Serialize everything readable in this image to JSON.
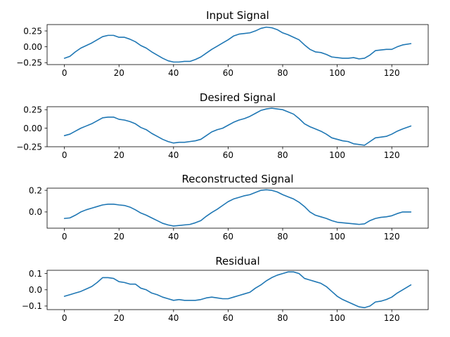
{
  "chart_data": [
    {
      "type": "line",
      "title": "Input Signal",
      "xlim": [
        -6.35,
        133.35
      ],
      "ylim": [
        -0.28,
        0.35
      ],
      "xticks": [
        0,
        20,
        40,
        60,
        80,
        100,
        120
      ],
      "yticks": [
        -0.25,
        0.0,
        0.25
      ],
      "ytick_labels": [
        "−0.25",
        "0.00",
        "0.25"
      ],
      "grid": false,
      "color": "#1f77b4",
      "x": [
        0,
        2,
        4,
        6,
        8,
        10,
        12,
        14,
        16,
        18,
        20,
        22,
        24,
        26,
        28,
        30,
        32,
        34,
        36,
        38,
        40,
        42,
        44,
        46,
        48,
        50,
        52,
        54,
        56,
        58,
        60,
        62,
        64,
        66,
        68,
        70,
        72,
        74,
        76,
        78,
        80,
        82,
        84,
        86,
        88,
        90,
        92,
        94,
        96,
        98,
        100,
        102,
        104,
        106,
        108,
        110,
        112,
        114,
        116,
        118,
        120,
        122,
        124,
        127
      ],
      "y": [
        -0.18,
        -0.15,
        -0.08,
        -0.02,
        0.02,
        0.06,
        0.11,
        0.16,
        0.18,
        0.18,
        0.15,
        0.15,
        0.12,
        0.08,
        0.02,
        -0.02,
        -0.08,
        -0.13,
        -0.18,
        -0.22,
        -0.24,
        -0.24,
        -0.23,
        -0.23,
        -0.2,
        -0.16,
        -0.1,
        -0.04,
        0.01,
        0.06,
        0.11,
        0.17,
        0.2,
        0.21,
        0.22,
        0.25,
        0.29,
        0.31,
        0.3,
        0.27,
        0.22,
        0.19,
        0.15,
        0.11,
        0.03,
        -0.04,
        -0.08,
        -0.09,
        -0.12,
        -0.16,
        -0.17,
        -0.18,
        -0.18,
        -0.17,
        -0.19,
        -0.18,
        -0.13,
        -0.06,
        -0.05,
        -0.04,
        -0.04,
        0.0,
        0.03,
        0.05
      ]
    },
    {
      "type": "line",
      "title": "Desired Signal",
      "xlim": [
        -6.35,
        133.35
      ],
      "ylim": [
        -0.25,
        0.29
      ],
      "xticks": [
        0,
        20,
        40,
        60,
        80,
        100,
        120
      ],
      "yticks": [
        -0.25,
        0.0,
        0.25
      ],
      "ytick_labels": [
        "−0.25",
        "0.00",
        "0.25"
      ],
      "grid": false,
      "color": "#1f77b4",
      "x": [
        0,
        2,
        4,
        6,
        8,
        10,
        12,
        14,
        16,
        18,
        20,
        22,
        24,
        26,
        28,
        30,
        32,
        34,
        36,
        38,
        40,
        42,
        44,
        46,
        48,
        50,
        52,
        54,
        56,
        58,
        60,
        62,
        64,
        66,
        68,
        70,
        72,
        74,
        76,
        78,
        80,
        82,
        84,
        86,
        88,
        90,
        92,
        94,
        96,
        98,
        100,
        102,
        104,
        106,
        108,
        110,
        112,
        114,
        116,
        118,
        120,
        122,
        124,
        127
      ],
      "y": [
        -0.1,
        -0.08,
        -0.04,
        0.0,
        0.03,
        0.06,
        0.1,
        0.14,
        0.15,
        0.15,
        0.12,
        0.11,
        0.09,
        0.06,
        0.01,
        -0.02,
        -0.07,
        -0.11,
        -0.15,
        -0.18,
        -0.2,
        -0.19,
        -0.19,
        -0.18,
        -0.17,
        -0.15,
        -0.1,
        -0.05,
        -0.02,
        0.0,
        0.04,
        0.08,
        0.11,
        0.13,
        0.16,
        0.2,
        0.24,
        0.26,
        0.27,
        0.26,
        0.25,
        0.22,
        0.19,
        0.13,
        0.06,
        0.02,
        -0.01,
        -0.04,
        -0.08,
        -0.13,
        -0.15,
        -0.17,
        -0.18,
        -0.21,
        -0.22,
        -0.23,
        -0.18,
        -0.13,
        -0.12,
        -0.11,
        -0.08,
        -0.04,
        -0.01,
        0.03
      ]
    },
    {
      "type": "line",
      "title": "Reconstructed Signal",
      "xlim": [
        -6.35,
        133.35
      ],
      "ylim": [
        -0.15,
        0.22
      ],
      "xticks": [
        0,
        20,
        40,
        60,
        80,
        100,
        120
      ],
      "yticks": [
        0.0,
        0.2
      ],
      "ytick_labels": [
        "0.0",
        "0.2"
      ],
      "grid": false,
      "color": "#1f77b4",
      "x": [
        0,
        2,
        4,
        6,
        8,
        10,
        12,
        14,
        16,
        18,
        20,
        22,
        24,
        26,
        28,
        30,
        32,
        34,
        36,
        38,
        40,
        42,
        44,
        46,
        48,
        50,
        52,
        54,
        56,
        58,
        60,
        62,
        64,
        66,
        68,
        70,
        72,
        74,
        76,
        78,
        80,
        82,
        84,
        86,
        88,
        90,
        92,
        94,
        96,
        98,
        100,
        102,
        104,
        106,
        108,
        110,
        112,
        114,
        116,
        118,
        120,
        122,
        124,
        127
      ],
      "y": [
        -0.06,
        -0.055,
        -0.03,
        0.0,
        0.02,
        0.035,
        0.05,
        0.065,
        0.072,
        0.072,
        0.065,
        0.06,
        0.045,
        0.02,
        -0.01,
        -0.03,
        -0.055,
        -0.08,
        -0.105,
        -0.12,
        -0.13,
        -0.125,
        -0.12,
        -0.115,
        -0.1,
        -0.08,
        -0.04,
        -0.005,
        0.025,
        0.06,
        0.095,
        0.12,
        0.135,
        0.15,
        0.16,
        0.18,
        0.2,
        0.205,
        0.2,
        0.185,
        0.16,
        0.14,
        0.12,
        0.09,
        0.05,
        0.0,
        -0.03,
        -0.045,
        -0.06,
        -0.08,
        -0.095,
        -0.1,
        -0.105,
        -0.11,
        -0.115,
        -0.11,
        -0.08,
        -0.06,
        -0.05,
        -0.045,
        -0.035,
        -0.015,
        0.0,
        0.0
      ]
    },
    {
      "type": "line",
      "title": "Residual",
      "xlim": [
        -6.35,
        133.35
      ],
      "ylim": [
        -0.122,
        0.12
      ],
      "xticks": [
        0,
        20,
        40,
        60,
        80,
        100,
        120
      ],
      "yticks": [
        -0.1,
        0.0,
        0.1
      ],
      "ytick_labels": [
        "−0.1",
        "0.0",
        "0.1"
      ],
      "grid": false,
      "color": "#1f77b4",
      "x": [
        0,
        2,
        4,
        6,
        8,
        10,
        12,
        14,
        16,
        18,
        20,
        22,
        24,
        26,
        28,
        30,
        32,
        34,
        36,
        38,
        40,
        42,
        44,
        46,
        48,
        50,
        52,
        54,
        56,
        58,
        60,
        62,
        64,
        66,
        68,
        70,
        72,
        74,
        76,
        78,
        80,
        82,
        84,
        86,
        88,
        90,
        92,
        94,
        96,
        98,
        100,
        102,
        104,
        106,
        108,
        110,
        112,
        114,
        116,
        118,
        120,
        122,
        124,
        127
      ],
      "y": [
        -0.04,
        -0.03,
        -0.02,
        -0.01,
        0.005,
        0.02,
        0.045,
        0.075,
        0.075,
        0.07,
        0.05,
        0.045,
        0.035,
        0.035,
        0.01,
        0.0,
        -0.02,
        -0.03,
        -0.045,
        -0.055,
        -0.065,
        -0.06,
        -0.065,
        -0.065,
        -0.065,
        -0.06,
        -0.05,
        -0.045,
        -0.05,
        -0.055,
        -0.055,
        -0.045,
        -0.035,
        -0.025,
        -0.015,
        0.01,
        0.03,
        0.055,
        0.075,
        0.09,
        0.1,
        0.11,
        0.11,
        0.1,
        0.07,
        0.06,
        0.05,
        0.04,
        0.02,
        -0.01,
        -0.04,
        -0.06,
        -0.075,
        -0.09,
        -0.105,
        -0.11,
        -0.1,
        -0.075,
        -0.07,
        -0.06,
        -0.045,
        -0.02,
        0.0,
        0.03
      ]
    }
  ]
}
